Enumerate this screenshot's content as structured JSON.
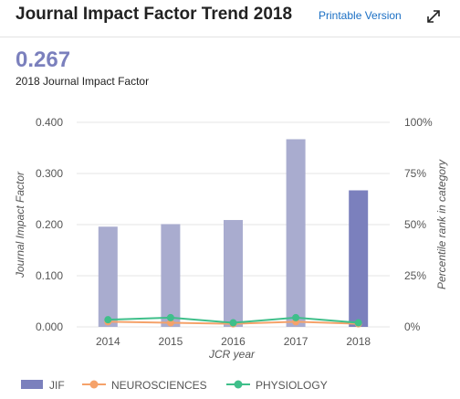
{
  "header": {
    "title": "Journal Impact Factor Trend 2018",
    "printable_label": "Printable Version",
    "expand_icon": "expand-arrows-icon"
  },
  "summary": {
    "value": "0.267",
    "label": "2018 Journal Impact Factor"
  },
  "colors": {
    "jif": "#a9accf",
    "jif_current": "#7b80bd",
    "neurosciences": "#f5a26a",
    "physiology": "#3fbf8a",
    "grid": "#e6e6e6"
  },
  "chart_data": {
    "type": "bar",
    "categories": [
      "2014",
      "2015",
      "2016",
      "2017",
      "2018"
    ],
    "xlabel": "JCR year",
    "ylabel": "Journal Impact Factor",
    "y2label": "Percentile rank in category",
    "ylim": [
      0,
      0.4
    ],
    "y_ticks": [
      "0.000",
      "0.100",
      "0.200",
      "0.300",
      "0.400"
    ],
    "y2lim": [
      0,
      100
    ],
    "y2_ticks": [
      "0%",
      "25%",
      "50%",
      "75%",
      "100%"
    ],
    "grid": true,
    "legend_position": "bottom-left",
    "series": [
      {
        "name": "JIF",
        "type": "bar",
        "axis": "left",
        "values": [
          0.196,
          0.201,
          0.209,
          0.367,
          0.267
        ]
      },
      {
        "name": "NEUROSCIENCES",
        "type": "line",
        "axis": "right",
        "values": [
          2.5,
          2,
          1.5,
          2.5,
          1.5
        ]
      },
      {
        "name": "PHYSIOLOGY",
        "type": "line",
        "axis": "right",
        "values": [
          3.5,
          4.5,
          2,
          4.5,
          2
        ]
      }
    ]
  }
}
